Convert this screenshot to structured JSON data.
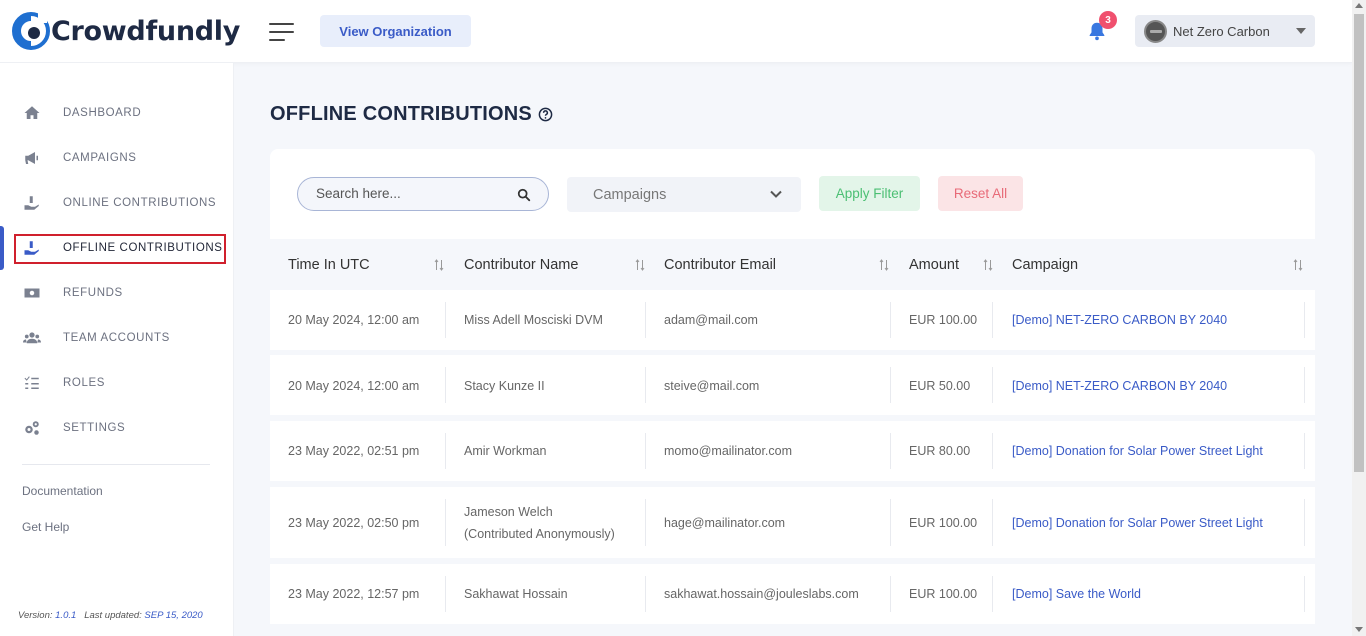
{
  "header": {
    "logo_text": "Crowdfundly",
    "view_org_label": "View Organization",
    "notification_count": "3",
    "org_name": "Net Zero Carbon"
  },
  "sidebar": {
    "items": [
      {
        "label": "DASHBOARD",
        "icon": "home-icon"
      },
      {
        "label": "CAMPAIGNS",
        "icon": "megaphone-icon"
      },
      {
        "label": "ONLINE CONTRIBUTIONS",
        "icon": "hand-coins-icon"
      },
      {
        "label": "OFFLINE CONTRIBUTIONS",
        "icon": "hand-coins-icon",
        "active": true
      },
      {
        "label": "REFUNDS",
        "icon": "money-bill-icon"
      },
      {
        "label": "TEAM ACCOUNTS",
        "icon": "users-icon"
      },
      {
        "label": "ROLES",
        "icon": "checklist-icon"
      },
      {
        "label": "SETTINGS",
        "icon": "gears-icon"
      }
    ],
    "documentation": "Documentation",
    "get_help": "Get Help",
    "version_label": "Version:",
    "version": "1.0.1",
    "last_updated_label": "Last updated:",
    "last_updated": "SEP 15, 2020"
  },
  "main": {
    "title": "OFFLINE CONTRIBUTIONS",
    "search_placeholder": "Search here...",
    "campaign_select": "Campaigns",
    "apply_label": "Apply Filter",
    "reset_label": "Reset All"
  },
  "table": {
    "columns": [
      "Time In UTC",
      "Contributor Name",
      "Contributor Email",
      "Amount",
      "Campaign"
    ],
    "rows": [
      {
        "time": "20 May 2024, 12:00 am",
        "name": "Miss Adell Mosciski DVM",
        "name2": "",
        "email": "adam@mail.com",
        "amount": "EUR 100.00",
        "campaign": "[Demo] NET-ZERO CARBON BY 2040"
      },
      {
        "time": "20 May 2024, 12:00 am",
        "name": "Stacy Kunze II",
        "name2": "",
        "email": "steive@mail.com",
        "amount": "EUR 50.00",
        "campaign": "[Demo] NET-ZERO CARBON BY 2040"
      },
      {
        "time": "23 May 2022, 02:51 pm",
        "name": "Amir Workman",
        "name2": "",
        "email": "momo@mailinator.com",
        "amount": "EUR 80.00",
        "campaign": "[Demo] Donation for Solar Power Street Light"
      },
      {
        "time": "23 May 2022, 02:50 pm",
        "name": "Jameson Welch",
        "name2": "(Contributed Anonymously)",
        "email": "hage@mailinator.com",
        "amount": "EUR 100.00",
        "campaign": "[Demo] Donation for Solar Power Street Light"
      },
      {
        "time": "23 May 2022, 12:57 pm",
        "name": "Sakhawat Hossain",
        "name2": "",
        "email": "sakhawat.hossain@jouleslabs.com",
        "amount": "EUR 100.00",
        "campaign": "[Demo] Save the World"
      }
    ]
  },
  "colors": {
    "accent": "#3a5bc7",
    "apply": "#4bbf73",
    "reset": "#e86a78",
    "badge": "#f0506e"
  }
}
